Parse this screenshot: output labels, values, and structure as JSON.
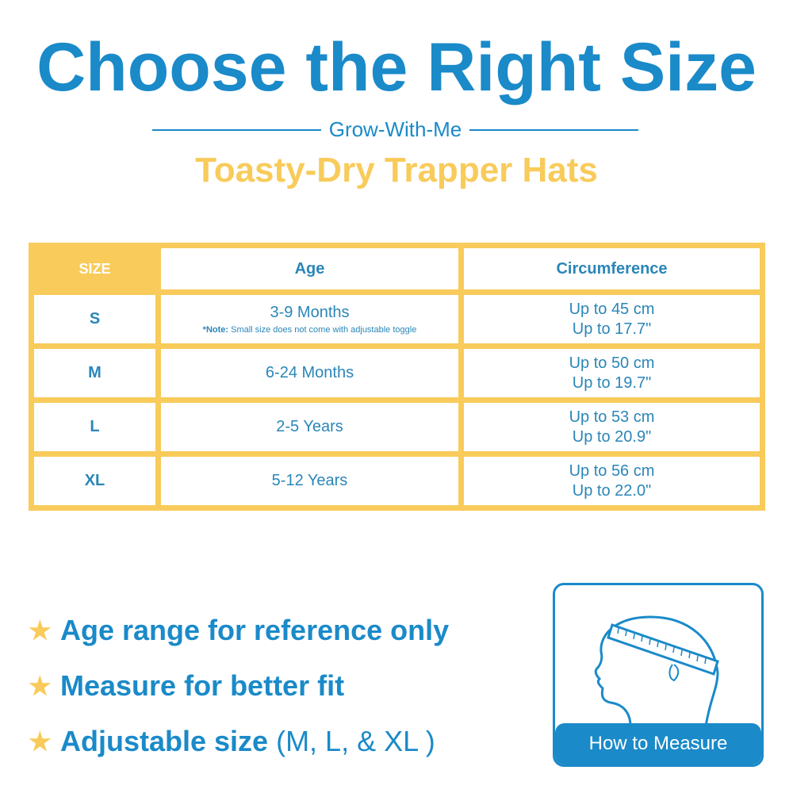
{
  "title": "Choose the Right Size",
  "subtitle": "Grow-With-Me",
  "product": "Toasty-Dry Trapper Hats",
  "colors": {
    "blue": "#1a8ac9",
    "yellow": "#f8cb5a"
  },
  "table": {
    "headers": [
      "SIZE",
      "Age",
      "Circumference"
    ],
    "rows": [
      {
        "size": "S",
        "age": "3-9 Months",
        "note_label": "*Note:",
        "note": "Small size does not come with adjustable toggle",
        "cm": "Up to 45 cm",
        "in": "Up to 17.7\""
      },
      {
        "size": "M",
        "age": "6-24 Months",
        "cm": "Up to 50 cm",
        "in": "Up to 19.7\""
      },
      {
        "size": "L",
        "age": "2-5 Years",
        "cm": "Up to 53 cm",
        "in": "Up to 20.9\""
      },
      {
        "size": "XL",
        "age": "5-12 Years",
        "cm": "Up to 56 cm",
        "in": "Up to 22.0\""
      }
    ]
  },
  "bullets": [
    {
      "icon": "star-icon",
      "text": "Age range for reference only"
    },
    {
      "icon": "star-icon",
      "text": "Measure for better fit"
    },
    {
      "icon": "star-icon",
      "text": "Adjustable size",
      "extra": "(M, L, & XL )"
    }
  ],
  "measure": {
    "label": "How to Measure",
    "icon": "head-measuring-tape-icon"
  }
}
